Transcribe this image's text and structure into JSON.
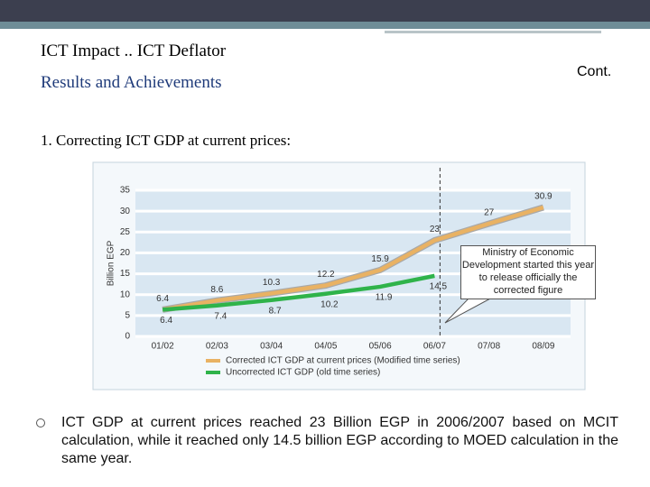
{
  "slide": {
    "title": "ICT Impact .. ICT Deflator",
    "subtitle": "Results and Achievements",
    "cont": "Cont.",
    "heading": "1. Correcting ICT GDP at current prices:",
    "bullet": "ICT GDP at current prices reached 23 Billion EGP in 2006/2007 based on MCIT calculation, while it reached only 14.5 billion EGP according to MOED calculation in the same year."
  },
  "chart_data": {
    "type": "line",
    "y_label": "Billion EGP",
    "categories": [
      "01/02",
      "02/03",
      "03/04",
      "04/05",
      "05/06",
      "06/07",
      "07/08",
      "08/09"
    ],
    "series": [
      {
        "name": "Corrected ICT GDP at current prices (Modified time series)",
        "color": "#e9b263",
        "values": [
          6.4,
          8.6,
          10.3,
          12.2,
          15.9,
          23,
          27,
          30.9
        ]
      },
      {
        "name": "Uncorrected ICT GDP (old time series)",
        "color": "#2fb34a",
        "values": [
          6.4,
          7.4,
          8.7,
          10.2,
          11.9,
          14.5,
          null,
          null
        ]
      }
    ],
    "ylim": [
      0,
      35
    ],
    "yticks": [
      0,
      5,
      10,
      15,
      20,
      25,
      30,
      35
    ],
    "grid": true,
    "annotation": {
      "category": "06/07",
      "text": "Ministry of Economic Development started this year to release officially the corrected figure"
    }
  }
}
